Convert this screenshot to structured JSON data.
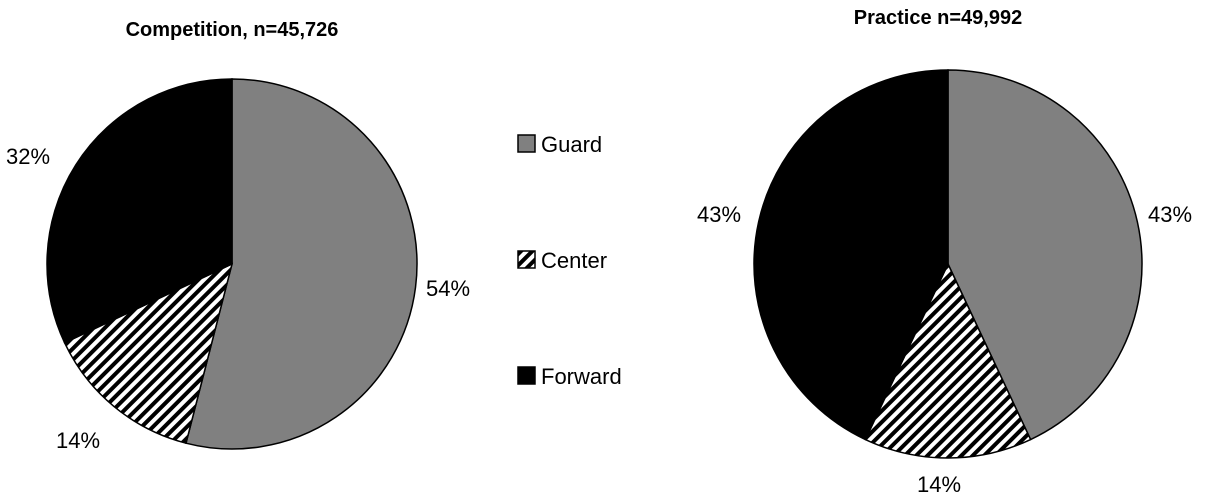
{
  "legend": [
    {
      "label": "Guard",
      "fill": "guard"
    },
    {
      "label": "Center",
      "fill": "center"
    },
    {
      "label": "Forward",
      "fill": "forward"
    }
  ],
  "colors": {
    "guard": "#808080",
    "center_stripe": "#000000",
    "center_bg": "#ffffff",
    "forward": "#000000",
    "outline": "#000000"
  },
  "chart_data": [
    {
      "type": "pie",
      "title": "Competition, n=45,726",
      "categories": [
        "Guard",
        "Center",
        "Forward"
      ],
      "values": [
        54,
        14,
        32
      ],
      "data_labels": [
        "54%",
        "14%",
        "32%"
      ]
    },
    {
      "type": "pie",
      "title": "Practice n=49,992",
      "categories": [
        "Guard",
        "Center",
        "Forward"
      ],
      "values": [
        43,
        14,
        43
      ],
      "data_labels": [
        "43%",
        "14%",
        "43%"
      ]
    }
  ]
}
